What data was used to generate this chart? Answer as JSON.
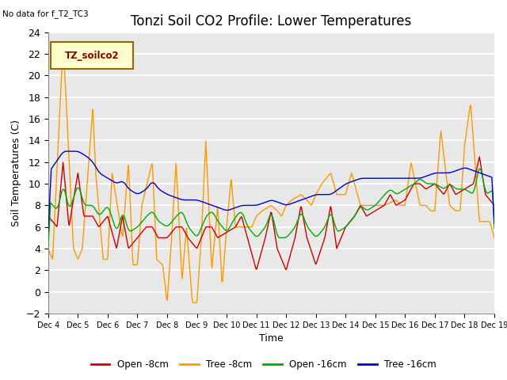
{
  "title": "Tonzi Soil CO2 Profile: Lower Temperatures",
  "top_left_text": "No data for f_T2_TC3",
  "legend_label_text": "TZ_soilco2",
  "ylabel": "Soil Temperatures (C)",
  "xlabel": "Time",
  "ylim": [
    -2,
    24
  ],
  "yticks": [
    -2,
    0,
    2,
    4,
    6,
    8,
    10,
    12,
    14,
    16,
    18,
    20,
    22,
    24
  ],
  "xtick_labels": [
    "Dec 4",
    "Dec 5",
    "Dec 6",
    "Dec 7",
    "Dec 8",
    "Dec 9",
    "Dec 10",
    "Dec 11",
    "Dec 12",
    "Dec 13",
    "Dec 14",
    "Dec 15",
    "Dec 16",
    "Dec 17",
    "Dec 18",
    "Dec 19"
  ],
  "series_colors": {
    "open8": "#cc0000",
    "tree8": "#ff9900",
    "open16": "#00aa00",
    "tree16": "#0000cc"
  },
  "legend_entries": [
    "Open -8cm",
    "Tree -8cm",
    "Open -16cm",
    "Tree -16cm"
  ],
  "plot_bg_color": "#e8e8e8",
  "grid_color": "#ffffff",
  "title_fontsize": 12,
  "axis_fontsize": 9
}
